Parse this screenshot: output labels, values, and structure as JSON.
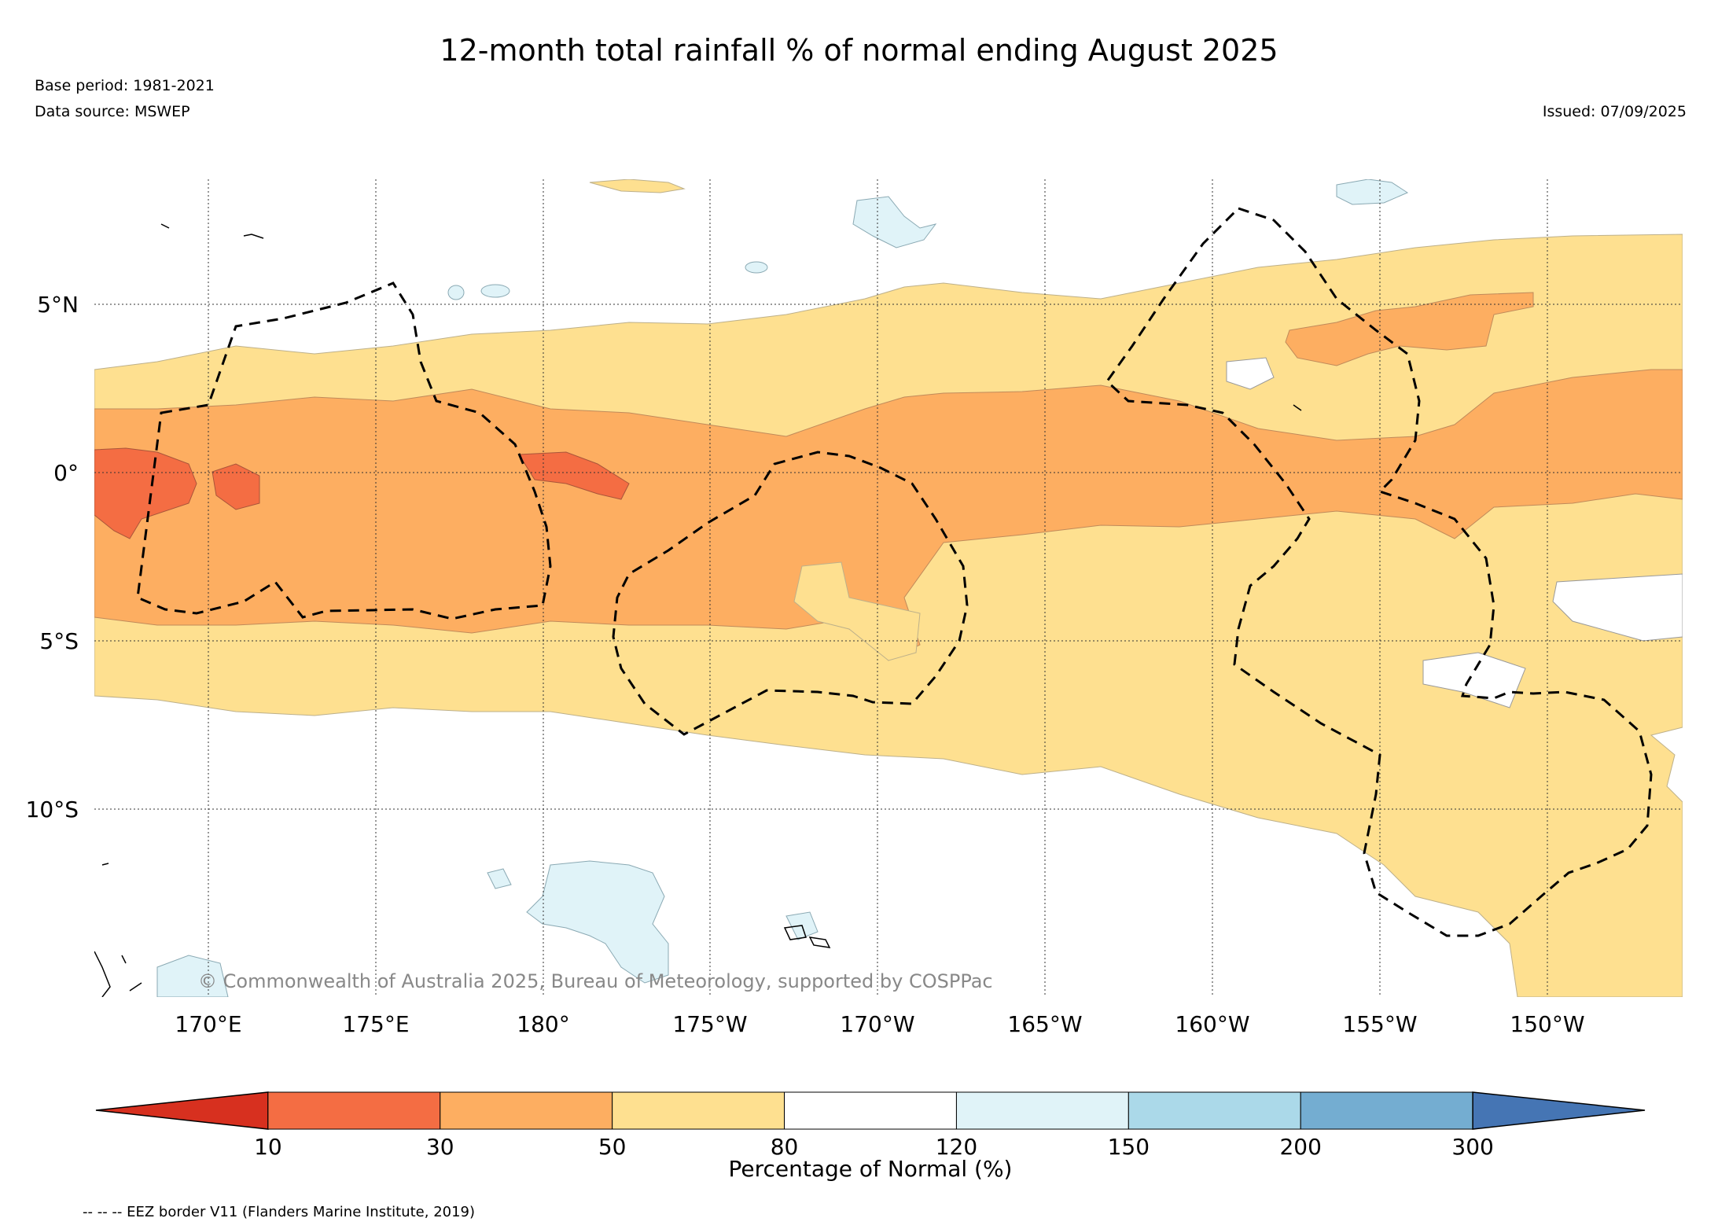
{
  "title": "12-month total rainfall % of normal ending August 2025",
  "base_period": "Base period: 1981-2021",
  "data_source": "Data source: MSWEP",
  "issued": "Issued: 07/09/2025",
  "copyright": "© Commonwealth of Australia 2025, Bureau of Meteorology, supported by COSPPac",
  "footnote": "-- -- -- EEZ border V11 (Flanders Marine Institute, 2019)",
  "lon_labels": [
    "170°E",
    "175°E",
    "180°",
    "175°W",
    "170°W",
    "165°W",
    "160°W",
    "155°W",
    "150°W"
  ],
  "lat_labels": [
    "5°N",
    "0°",
    "5°S",
    "10°S"
  ],
  "colorbar": {
    "label": "Percentage of Normal (%)",
    "ticks": [
      "10",
      "30",
      "50",
      "80",
      "120",
      "150",
      "200",
      "300"
    ],
    "colors": [
      "#d7301f",
      "#f46d43",
      "#fdae61",
      "#fee090",
      "#ffffff",
      "#e0f3f8",
      "#abd9e9",
      "#74add1",
      "#4575b4"
    ]
  }
}
